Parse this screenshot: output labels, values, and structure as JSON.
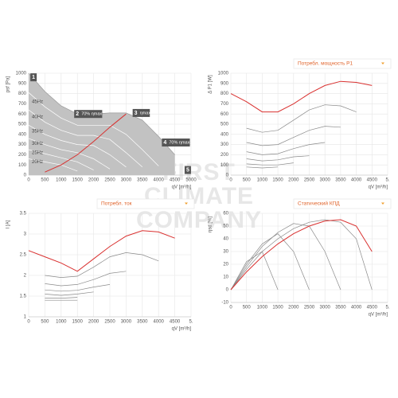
{
  "chart_data": [
    {
      "type": "area",
      "y_label": "psf [Pa]",
      "x_label": "qV [m³/h]",
      "area_color": "#c2c2c2",
      "grid": true,
      "xlim": [
        0,
        5000
      ],
      "xticks": [
        0,
        500,
        1000,
        1500,
        2000,
        2500,
        3000,
        3500,
        4000,
        4500,
        5000
      ],
      "ylim": [
        0,
        1000
      ],
      "yticks": [
        0,
        100,
        200,
        300,
        400,
        500,
        600,
        700,
        800,
        900,
        1000
      ],
      "x": [
        0,
        500,
        1000,
        1500,
        2000,
        2500,
        3000,
        3500,
        4000,
        4500,
        5000
      ],
      "series": [
        {
          "color": "#9a9a9a",
          "values": [
            1000,
            820,
            680,
            600,
            600,
            610,
            610,
            540,
            380,
            200,
            null
          ]
        },
        {
          "color": "#ffffff",
          "values": [
            810,
            670,
            560,
            490,
            490,
            490,
            400,
            250,
            90,
            null,
            null
          ]
        },
        {
          "color": "#ffffff",
          "values": [
            640,
            520,
            440,
            390,
            390,
            350,
            220,
            80,
            null,
            null,
            null
          ]
        },
        {
          "color": "#ffffff",
          "values": [
            490,
            400,
            340,
            300,
            290,
            200,
            80,
            null,
            null,
            null,
            null
          ]
        },
        {
          "color": "#ffffff",
          "values": [
            360,
            300,
            250,
            220,
            160,
            60,
            null,
            null,
            null,
            null,
            null
          ]
        },
        {
          "color": "#ffffff",
          "values": [
            250,
            210,
            170,
            130,
            50,
            null,
            null,
            null,
            null,
            null,
            null
          ]
        },
        {
          "color": "#ffffff",
          "values": [
            160,
            130,
            100,
            40,
            null,
            null,
            null,
            null,
            null,
            null,
            null
          ]
        },
        {
          "color": "#d9302f",
          "values": [
            null,
            30,
            100,
            200,
            330,
            470,
            600,
            null,
            null,
            null,
            null
          ]
        }
      ],
      "annotations": [
        {
          "text": "45Hz",
          "x": 0,
          "y": 720
        },
        {
          "text": "40Hz",
          "x": 0,
          "y": 570
        },
        {
          "text": "35Hz",
          "x": 0,
          "y": 430
        },
        {
          "text": "30Hz",
          "x": 0,
          "y": 310
        },
        {
          "text": "25Hz",
          "x": 0,
          "y": 220
        },
        {
          "text": "20Hz",
          "x": 0,
          "y": 130
        }
      ],
      "markers": [
        {
          "label": "1",
          "x": 150,
          "y": 960
        },
        {
          "label": "2",
          "note": "70% ηmax",
          "x": 1500,
          "y": 600
        },
        {
          "label": "3",
          "note": "ηmax",
          "x": 3300,
          "y": 610
        },
        {
          "label": "4",
          "note": "70% ηmax",
          "x": 4200,
          "y": 320
        },
        {
          "label": "5",
          "x": 4900,
          "y": 50
        }
      ]
    },
    {
      "type": "line",
      "y_label": "Δ P1 [W]",
      "x_label": "qV [m³/h]",
      "dropdown": "Потребл. мощность P1",
      "grid": true,
      "xlim": [
        0,
        5000
      ],
      "xticks": [
        0,
        500,
        1000,
        1500,
        2000,
        2500,
        3000,
        3500,
        4000,
        4500,
        {
          "value": 5000,
          "label": "5."
        }
      ],
      "ylim": [
        0,
        1000
      ],
      "yticks": [
        0,
        100,
        200,
        300,
        400,
        500,
        600,
        700,
        800,
        900,
        1000
      ],
      "x": [
        0,
        500,
        1000,
        1500,
        2000,
        2500,
        3000,
        3500,
        4000,
        4500,
        5000
      ],
      "series": [
        {
          "color": "#d9302f",
          "values": [
            800,
            720,
            620,
            620,
            700,
            800,
            880,
            920,
            910,
            880,
            null
          ]
        },
        {
          "color": "#8a8a8a",
          "values": [
            null,
            460,
            420,
            440,
            540,
            640,
            690,
            680,
            620,
            null,
            null
          ]
        },
        {
          "color": "#8a8a8a",
          "values": [
            null,
            320,
            290,
            300,
            370,
            440,
            480,
            470,
            null,
            null,
            null
          ]
        },
        {
          "color": "#8a8a8a",
          "values": [
            null,
            230,
            200,
            210,
            260,
            300,
            320,
            null,
            null,
            null,
            null
          ]
        },
        {
          "color": "#8a8a8a",
          "values": [
            null,
            160,
            140,
            150,
            180,
            190,
            null,
            null,
            null,
            null,
            null
          ]
        },
        {
          "color": "#8a8a8a",
          "values": [
            null,
            110,
            100,
            100,
            120,
            null,
            null,
            null,
            null,
            null,
            null
          ]
        },
        {
          "color": "#8a8a8a",
          "values": [
            null,
            80,
            70,
            80,
            null,
            null,
            null,
            null,
            null,
            null,
            null
          ]
        }
      ]
    },
    {
      "type": "line",
      "y_label": "I [A]",
      "x_label": "qV [m³/h]",
      "dropdown": "Потребл. ток",
      "grid": true,
      "xlim": [
        0,
        5000
      ],
      "xticks": [
        0,
        500,
        1000,
        1500,
        2000,
        2500,
        3000,
        3500,
        4000,
        4500,
        {
          "value": 5000,
          "label": "5."
        }
      ],
      "ylim": [
        1,
        3.5
      ],
      "yticks": [
        1,
        1.5,
        2,
        2.5,
        3,
        3.5
      ],
      "x": [
        0,
        500,
        1000,
        1500,
        2000,
        2500,
        3000,
        3500,
        4000,
        4500,
        5000
      ],
      "series": [
        {
          "color": "#d9302f",
          "values": [
            2.6,
            2.45,
            2.3,
            2.1,
            2.4,
            2.7,
            2.95,
            3.08,
            3.05,
            2.9,
            null
          ]
        },
        {
          "color": "#8a8a8a",
          "values": [
            null,
            2.0,
            1.95,
            1.98,
            2.2,
            2.45,
            2.55,
            2.5,
            2.35,
            null,
            null
          ]
        },
        {
          "color": "#8a8a8a",
          "values": [
            null,
            1.8,
            1.75,
            1.78,
            1.9,
            2.05,
            2.1,
            null,
            null,
            null,
            null
          ]
        },
        {
          "color": "#8a8a8a",
          "values": [
            null,
            1.65,
            1.62,
            1.64,
            1.72,
            1.78,
            null,
            null,
            null,
            null,
            null
          ]
        },
        {
          "color": "#8a8a8a",
          "values": [
            null,
            1.55,
            1.52,
            1.55,
            1.6,
            null,
            null,
            null,
            null,
            null,
            null
          ]
        },
        {
          "color": "#8a8a8a",
          "values": [
            null,
            1.45,
            1.45,
            1.47,
            null,
            null,
            null,
            null,
            null,
            null,
            null
          ]
        },
        {
          "color": "#8a8a8a",
          "values": [
            null,
            1.4,
            1.4,
            1.4,
            null,
            null,
            null,
            null,
            null,
            null,
            null
          ]
        }
      ]
    },
    {
      "type": "line",
      "y_label": "ηsd [%]",
      "x_label": "qV [m³/h]",
      "dropdown": "Статический КПД",
      "grid": true,
      "xlim": [
        0,
        5000
      ],
      "xticks": [
        0,
        500,
        1000,
        1500,
        2000,
        2500,
        3000,
        3500,
        4000,
        4500,
        {
          "value": 5000,
          "label": "5."
        }
      ],
      "ylim": [
        -10,
        60
      ],
      "yticks": [
        -10,
        0,
        10,
        20,
        30,
        40,
        50,
        60
      ],
      "x": [
        0,
        500,
        1000,
        1500,
        2000,
        2500,
        3000,
        3500,
        4000,
        4500,
        5000
      ],
      "series": [
        {
          "color": "#8a8a8a",
          "values": [
            0,
            22,
            30,
            0,
            null,
            null,
            null,
            null,
            null,
            null,
            null
          ]
        },
        {
          "color": "#8a8a8a",
          "values": [
            0,
            20,
            36,
            44,
            30,
            0,
            null,
            null,
            null,
            null,
            null
          ]
        },
        {
          "color": "#8a8a8a",
          "values": [
            0,
            18,
            34,
            45,
            52,
            50,
            30,
            0,
            null,
            null,
            null
          ]
        },
        {
          "color": "#8a8a8a",
          "values": [
            0,
            16,
            30,
            40,
            48,
            53,
            55,
            53,
            40,
            0,
            null
          ]
        },
        {
          "color": "#d9302f",
          "values": [
            0,
            14,
            26,
            36,
            44,
            50,
            54,
            55,
            50,
            30,
            null
          ]
        }
      ]
    }
  ],
  "watermark": [
    "FIRST",
    "CLIMATE",
    "COMPANY"
  ]
}
